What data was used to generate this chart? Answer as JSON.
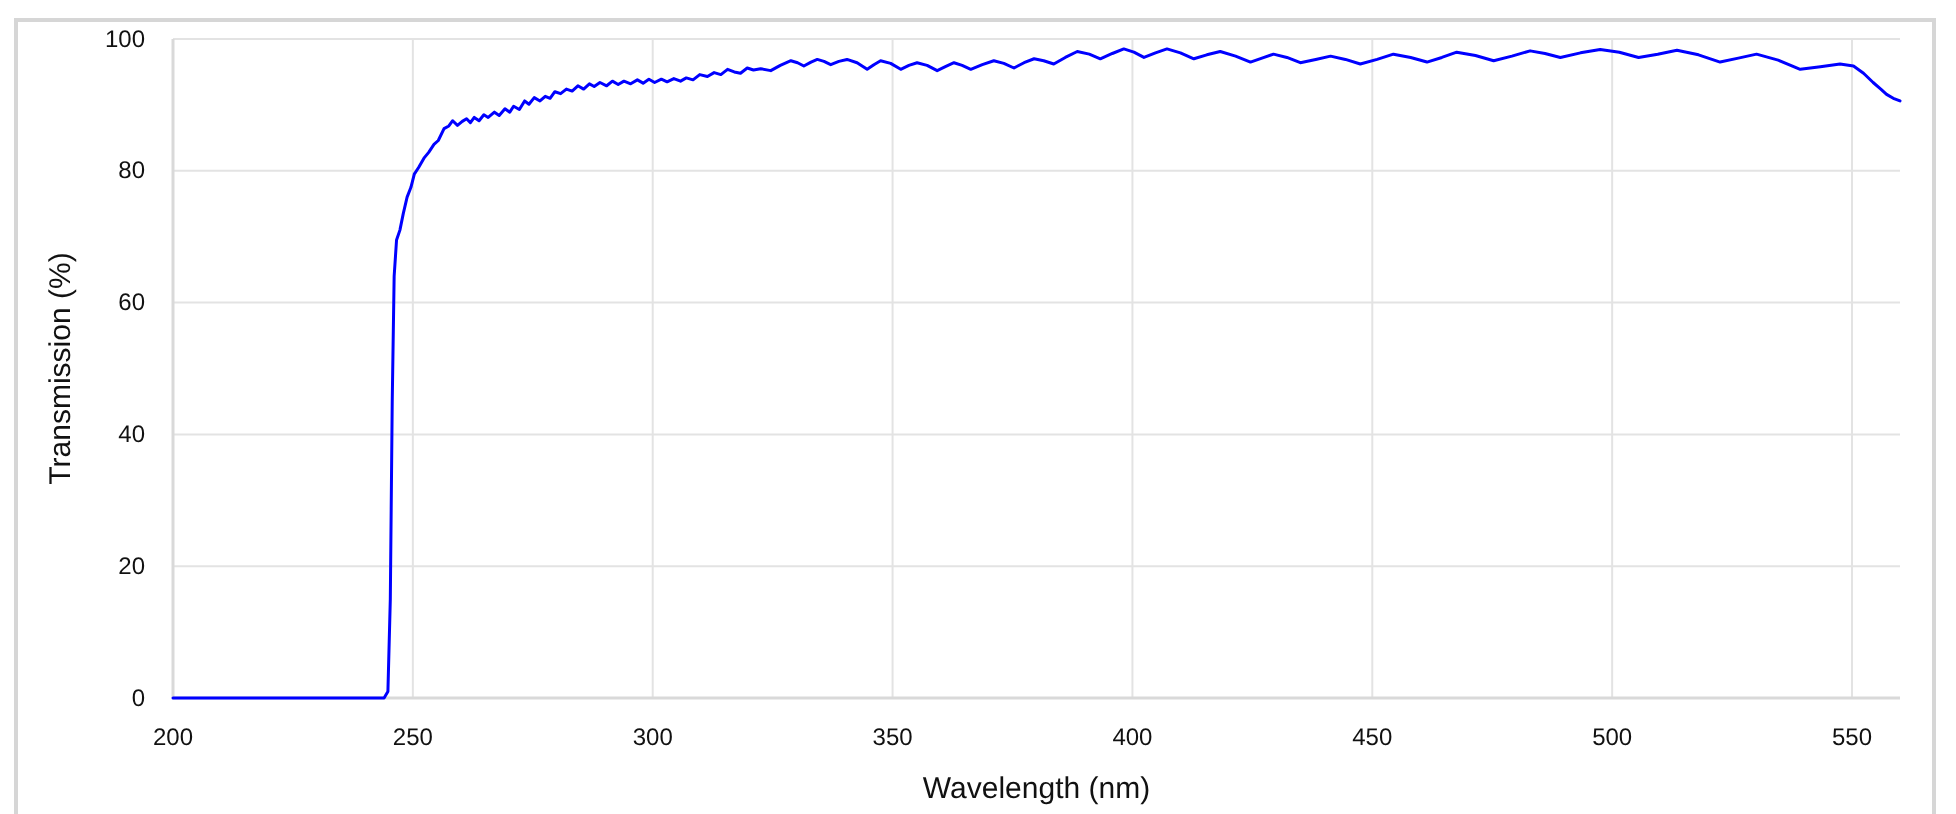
{
  "chart_data": {
    "type": "line",
    "xlabel": "Wavelength (nm)",
    "ylabel": "Transmission (%)",
    "xlim": [
      200,
      560
    ],
    "ylim": [
      0,
      100
    ],
    "xticks": [
      200,
      250,
      300,
      350,
      400,
      450,
      500,
      550
    ],
    "yticks": [
      0,
      20,
      40,
      60,
      80,
      100
    ],
    "grid": true,
    "line_style": "solid",
    "color": "#0000ff",
    "x": [
      200,
      244,
      244.8,
      245.3,
      245.7,
      246.1,
      246.6,
      247.3,
      248,
      248.8,
      249.6,
      250.3,
      251.2,
      252.4,
      253.3,
      254.4,
      255.3,
      256.5,
      257.5,
      258.3,
      259.3,
      260.3,
      261.2,
      262,
      262.8,
      263.8,
      264.8,
      265.7,
      267,
      268,
      269.2,
      270.2,
      271,
      272.2,
      273.3,
      274.2,
      275.3,
      276.5,
      277.6,
      278.6,
      279.6,
      280.8,
      282,
      283.2,
      284.4,
      285.6,
      286.8,
      287.8,
      289,
      290.4,
      291.6,
      292.8,
      294,
      295.4,
      296.8,
      298,
      299.2,
      300.4,
      301.8,
      303,
      304.4,
      305.8,
      307,
      308.4,
      309.8,
      311.4,
      312.8,
      314.2,
      315.6,
      317,
      318.3,
      319.7,
      321,
      322.5,
      324.6,
      326.6,
      328.8,
      330.2,
      331.5,
      333,
      334.3,
      335.7,
      337.1,
      338.8,
      340.5,
      342.6,
      344.7,
      346.1,
      347.5,
      349.6,
      351.7,
      353.4,
      355.1,
      357.2,
      359.3,
      361,
      362.8,
      364.5,
      366.3,
      368.7,
      371.1,
      373.2,
      375.3,
      377.4,
      379.5,
      381.5,
      383.6,
      386,
      388.5,
      391,
      393.3,
      395.8,
      398.2,
      400.3,
      402.4,
      404.8,
      407.2,
      410,
      412.8,
      415.5,
      418.3,
      421.5,
      424.6,
      427,
      429.4,
      432.2,
      435,
      438.2,
      441.3,
      444.4,
      447.5,
      451,
      454.4,
      458,
      461.4,
      464.5,
      467.6,
      471.5,
      475.3,
      479.1,
      482.9,
      486,
      489.2,
      493.4,
      497.5,
      501.5,
      505.5,
      509.5,
      513.5,
      518,
      522.5,
      526.3,
      530.1,
      534.6,
      539.2,
      543.4,
      547.5,
      550.3,
      552.4,
      554.4,
      556,
      557.2,
      558.6,
      560
    ],
    "values": [
      0,
      0,
      1,
      15,
      45,
      64,
      69.5,
      71,
      73.5,
      76,
      77.5,
      79.5,
      80.5,
      82,
      82.8,
      84,
      84.6,
      86.4,
      86.8,
      87.6,
      86.9,
      87.5,
      87.9,
      87.3,
      88.1,
      87.6,
      88.5,
      88.1,
      88.9,
      88.4,
      89.4,
      88.9,
      89.8,
      89.3,
      90.6,
      90.1,
      91.1,
      90.6,
      91.3,
      91,
      92,
      91.7,
      92.4,
      92.1,
      92.9,
      92.4,
      93.2,
      92.8,
      93.4,
      92.9,
      93.6,
      93.1,
      93.6,
      93.2,
      93.8,
      93.3,
      93.9,
      93.4,
      93.9,
      93.5,
      94,
      93.6,
      94.1,
      93.8,
      94.6,
      94.3,
      94.9,
      94.6,
      95.4,
      95,
      94.8,
      95.6,
      95.3,
      95.5,
      95.2,
      96,
      96.7,
      96.4,
      95.9,
      96.5,
      96.9,
      96.6,
      96.1,
      96.6,
      96.9,
      96.4,
      95.4,
      96.1,
      96.7,
      96.3,
      95.4,
      96,
      96.4,
      96,
      95.2,
      95.8,
      96.4,
      96,
      95.4,
      96.1,
      96.7,
      96.3,
      95.6,
      96.4,
      97,
      96.7,
      96.2,
      97.2,
      98.1,
      97.7,
      97,
      97.8,
      98.5,
      98,
      97.2,
      97.9,
      98.5,
      97.9,
      97,
      97.6,
      98.1,
      97.4,
      96.5,
      97.1,
      97.7,
      97.2,
      96.4,
      96.9,
      97.4,
      96.9,
      96.2,
      96.9,
      97.7,
      97.2,
      96.5,
      97.2,
      98,
      97.5,
      96.7,
      97.4,
      98.2,
      97.8,
      97.2,
      97.9,
      98.4,
      98,
      97.2,
      97.7,
      98.3,
      97.6,
      96.5,
      97.1,
      97.7,
      96.8,
      95.4,
      95.8,
      96.2,
      95.9,
      94.8,
      93.4,
      92.4,
      91.6,
      91,
      90.6
    ]
  }
}
